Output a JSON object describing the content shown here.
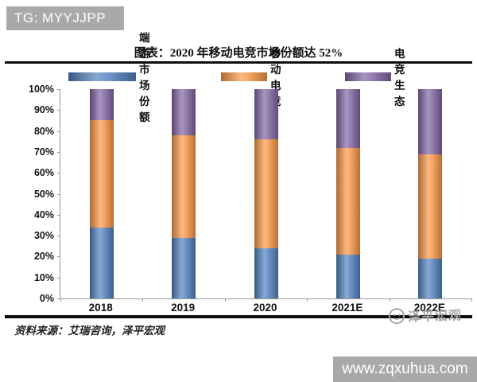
{
  "badge": {
    "text": "TG: MYYJJPP"
  },
  "title": "图表：2020 年移动电竞市场份额达 52%",
  "source": "资料来源：艾瑞咨询，泽平宏观",
  "watermark": {
    "brand": "泽平宏观",
    "url": "www.zqxuhua.com"
  },
  "chart_data": {
    "type": "bar",
    "stacked": true,
    "title": "图表：2020 年移动电竞市场份额达 52%",
    "categories": [
      "2018",
      "2019",
      "2020",
      "2021E",
      "2022E"
    ],
    "series": [
      {
        "name": "端游市场份额",
        "color": "#4F81BD",
        "values": [
          34,
          29,
          24,
          21,
          19
        ]
      },
      {
        "name": "移动电竞",
        "color": "#F79646",
        "values": [
          51,
          49,
          52,
          51,
          50
        ]
      },
      {
        "name": "电竞生态",
        "color": "#8064A2",
        "values": [
          15,
          22,
          24,
          28,
          31
        ]
      }
    ],
    "xlabel": "",
    "ylabel": "",
    "ylim": [
      0,
      100
    ],
    "yticks": [
      0,
      10,
      20,
      30,
      40,
      50,
      60,
      70,
      80,
      90,
      100
    ],
    "ytick_suffix": "%",
    "legend_position": "top",
    "grid": false
  }
}
